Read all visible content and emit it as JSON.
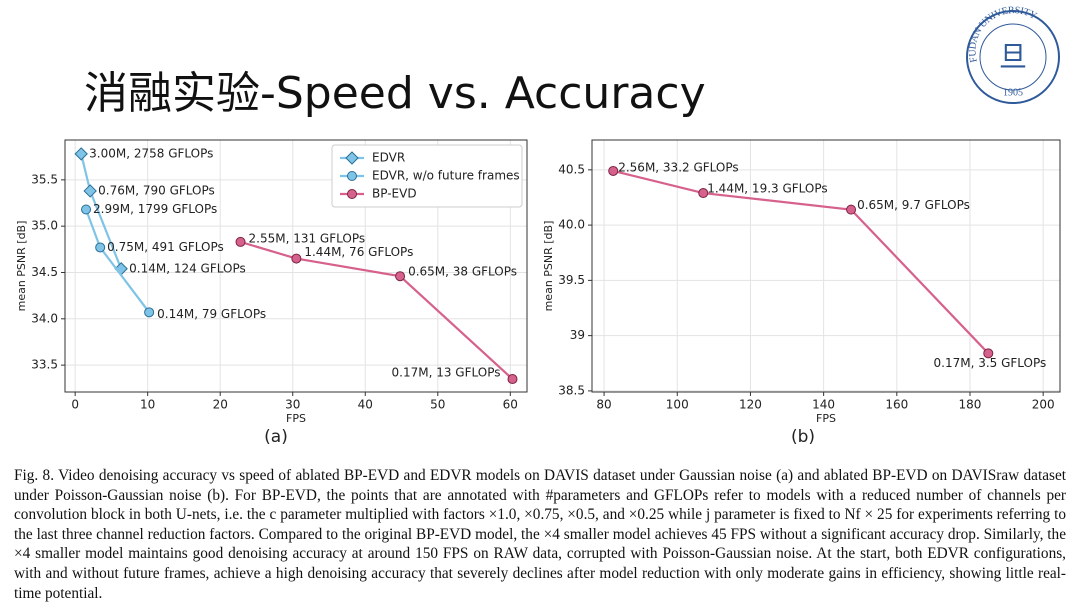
{
  "slide_title": "消融实验-Speed vs. Accuracy",
  "logo": {
    "text": "FUDAN UNIVERSITY",
    "year": "1905"
  },
  "panel_labels": [
    "(a)",
    "(b)"
  ],
  "caption": "Fig. 8.   Video denoising accuracy vs speed of ablated BP-EVD and EDVR models on DAVIS dataset under Gaussian noise (a) and ablated BP-EVD on DAVISraw dataset under Poisson-Gaussian noise (b). For BP-EVD, the points that are annotated with #parameters and GFLOPs refer to models with a reduced number of channels per convolution block in both U-nets, i.e. the c parameter multiplied with factors ×1.0, ×0.75, ×0.5, and ×0.25 while j parameter is fixed to Nf × 25 for experiments referring to the last three channel reduction factors. Compared to the original BP-EVD model, the ×4 smaller model achieves 45 FPS without a significant accuracy drop. Similarly, the ×4 smaller model maintains good denoising accuracy at around 150 FPS on RAW data, corrupted with Poisson-Gaussian noise. At the start, both EDVR configurations, with and without future frames, achieve a high denoising accuracy that severely declines after model reduction with only moderate gains in efficiency, showing little real-time potential.",
  "chart_data": [
    {
      "type": "line",
      "x_label": "FPS",
      "y_label": "mean PSNR [dB]",
      "xlim": [
        -1.4,
        62.3
      ],
      "ylim": [
        33.21,
        35.93
      ],
      "xticks": [
        0,
        10,
        20,
        30,
        40,
        50,
        60
      ],
      "yticks": [
        33.5,
        {
          "value": 34,
          "label": "34.0"
        },
        34.5,
        {
          "value": 35,
          "label": "35.0"
        },
        35.5
      ],
      "grid": true,
      "legend": "upper right",
      "series": [
        {
          "name": "EDVR",
          "color": "#7fc4e6",
          "marker": "diamond",
          "x": [
            0.83,
            2.07,
            6.34
          ],
          "values": [
            35.78,
            35.38,
            34.54
          ],
          "point_labels": [
            "3.00M, 2758 GFLOPs",
            "0.76M, 790 GFLOPs",
            "0.14M, 124 GFLOPs"
          ]
        },
        {
          "name": "EDVR, w/o future frames",
          "color": "#7fc4e6",
          "marker": "circle",
          "x": [
            1.5,
            3.45,
            10.2
          ],
          "values": [
            35.18,
            34.77,
            34.07
          ],
          "point_labels": [
            "2.99M, 1799 GFLOPs",
            "0.75M, 491 GFLOPs",
            "0.14M, 79 GFLOPs"
          ]
        },
        {
          "name": "BP-EVD",
          "color": "#d6618c",
          "marker": "circle",
          "x": [
            22.8,
            30.5,
            44.8,
            60.3
          ],
          "values": [
            34.83,
            34.65,
            34.46,
            33.35
          ],
          "point_labels": [
            "2.55M, 131 GFLOPs",
            "1.44M, 76 GFLOPs",
            "0.65M, 38 GFLOPs",
            "0.17M, 13 GFLOPs"
          ]
        }
      ]
    },
    {
      "type": "line",
      "x_label": "FPS",
      "y_label": "mean PSNR [dB]",
      "xlim": [
        76.7,
        204.6
      ],
      "ylim": [
        38.49,
        40.77
      ],
      "xticks": [
        80,
        100,
        120,
        140,
        160,
        180,
        200
      ],
      "yticks": [
        38.5,
        39,
        39.5,
        {
          "value": 40,
          "label": "40.0"
        },
        40.5
      ],
      "grid": true,
      "series": [
        {
          "color": "#d6618c",
          "marker": "circle",
          "x": [
            82.5,
            107.1,
            147.5,
            185
          ],
          "values": [
            40.49,
            40.29,
            40.14,
            38.84
          ],
          "point_labels": [
            "2.56M, 33.2 GFLOPs",
            "1.44M, 19.3 GFLOPs",
            "0.65M, 9.7 GFLOPs",
            "0.17M, 3.5 GFLOPs"
          ]
        }
      ]
    }
  ]
}
